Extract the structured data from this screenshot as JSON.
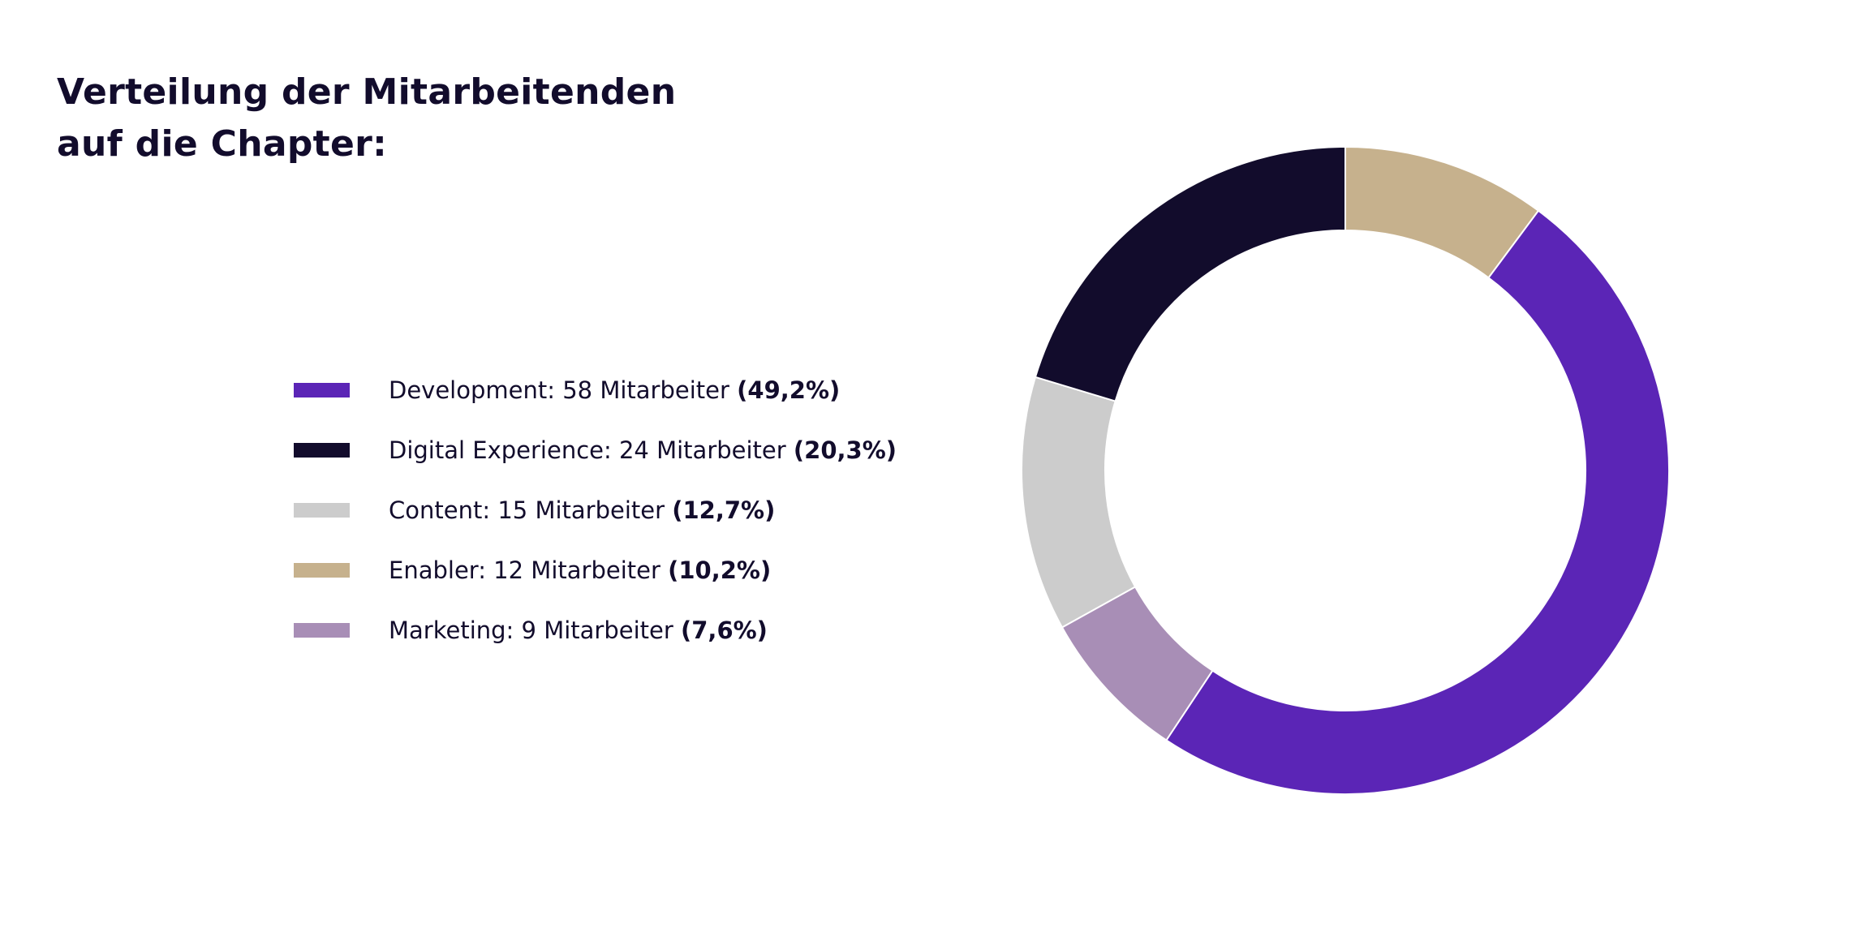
{
  "title": {
    "line1": "Verteilung der Mitarbeitenden",
    "line2": "auf die Chapter:"
  },
  "chart_data": {
    "type": "pie",
    "variant": "donut",
    "title": "Verteilung der Mitarbeitenden auf die Chapter:",
    "legend_placement": "left",
    "start": "top",
    "direction": "clockwise",
    "slice_order": [
      "Enabler",
      "Development",
      "Marketing",
      "Content",
      "Digital Experience"
    ],
    "unit_label": "Mitarbeiter",
    "series": [
      {
        "name": "Development",
        "value": 58,
        "percent_label": "(49,2%)",
        "color": "#5B25B6",
        "label_main": "Development: 58 Mitarbeiter"
      },
      {
        "name": "Digital Experience",
        "value": 24,
        "percent_label": "(20,3%)",
        "color": "#120C2C",
        "label_main": "Digital Experience: 24 Mitarbeiter"
      },
      {
        "name": "Content",
        "value": 15,
        "percent_label": "(12,7%)",
        "color": "#CCCCCC",
        "label_main": "Content: 15 Mitarbeiter"
      },
      {
        "name": "Enabler",
        "value": 12,
        "percent_label": "(10,2%)",
        "color": "#C6B18D",
        "label_main": "Enabler: 12 Mitarbeiter"
      },
      {
        "name": "Marketing",
        "value": 9,
        "percent_label": "(7,6%)",
        "color": "#A88EB6",
        "label_main": "Marketing: 9 Mitarbeiter"
      }
    ]
  }
}
